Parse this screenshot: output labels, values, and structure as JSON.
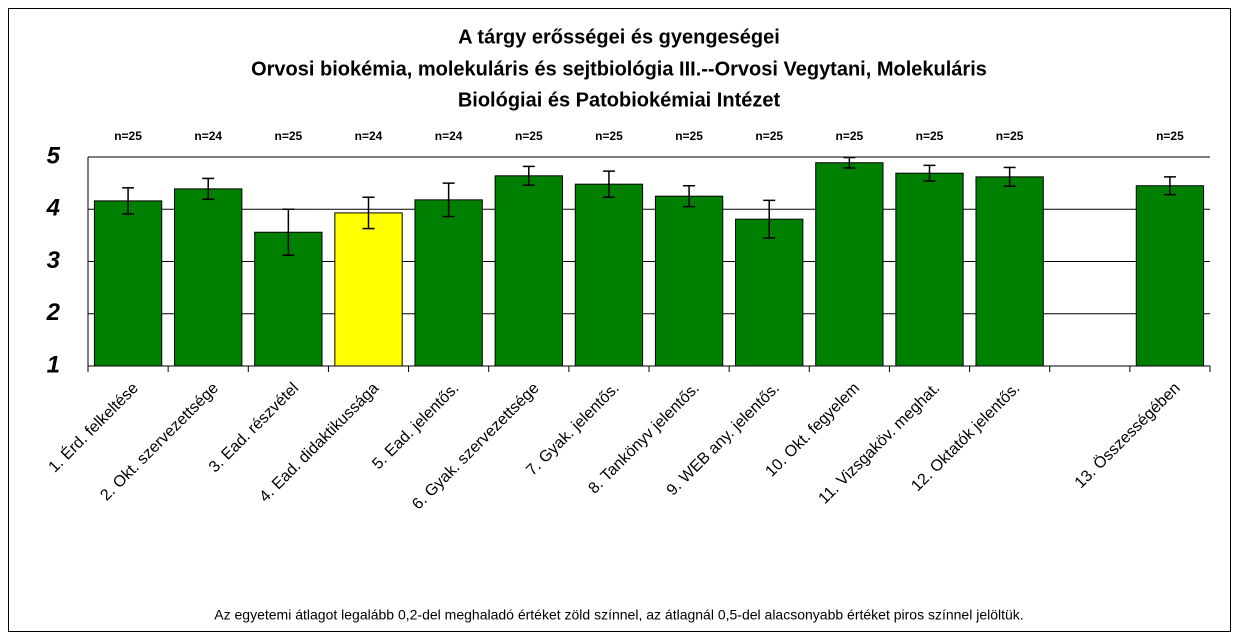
{
  "chart_data": {
    "type": "bar",
    "title": [
      "A tárgy erősségei és gyengeségei",
      "Orvosi biokémia, molekuláris és sejtbiológia III.--Orvosi Vegytani, Molekuláris",
      "Biológiai és Patobiokémiai Intézet"
    ],
    "categories": [
      "1. Érd. felkeltése",
      "2. Okt. szervezettsége",
      "3. Ead. részvétel",
      "4. Ead. didaktikussága",
      "5. Ead. jelentős.",
      "6. Gyak. szervezettsége",
      "7. Gyak. jelentős.",
      "8. Tankönyv jelentős.",
      "9. WEB any. jelentős.",
      "10. Okt. fegyelem",
      "11. Vizsgaköv. meghat.",
      "12. Oktatók jelentős.",
      null,
      "13. Összességében"
    ],
    "values": [
      4.16,
      4.39,
      3.56,
      3.93,
      4.18,
      4.64,
      4.48,
      4.25,
      3.81,
      4.89,
      4.69,
      4.62,
      null,
      4.45
    ],
    "errors": [
      0.25,
      0.2,
      0.44,
      0.3,
      0.32,
      0.18,
      0.25,
      0.2,
      0.36,
      0.1,
      0.15,
      0.18,
      null,
      0.17
    ],
    "colors": [
      "#008000",
      "#008000",
      "#008000",
      "#ffff00",
      "#008000",
      "#008000",
      "#008000",
      "#008000",
      "#008000",
      "#008000",
      "#008000",
      "#008000",
      null,
      "#008000"
    ],
    "sample_sizes": [
      "n=25",
      "n=24",
      "n=25",
      "n=24",
      "n=24",
      "n=25",
      "n=25",
      "n=25",
      "n=25",
      "n=25",
      "n=25",
      "n=25",
      null,
      "n=25"
    ],
    "ylim": [
      1,
      5
    ],
    "yticks": [
      1,
      2,
      3,
      4,
      5
    ],
    "grid": true,
    "note": "Az egyetemi átlagot legalább 0,2-del meghaladó értéket zöld színnel, az átlagnál 0,5-del alacsonyabb értéket piros színnel jelöltük."
  }
}
